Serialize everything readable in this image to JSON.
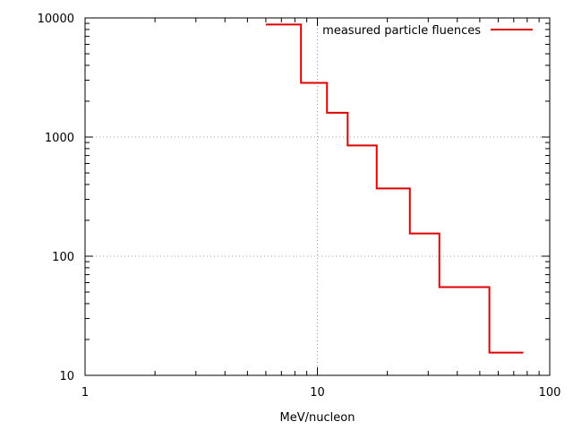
{
  "chart_data": {
    "type": "line",
    "step": true,
    "title": "",
    "xlabel": "MeV/nucleon",
    "ylabel": "",
    "xscale": "log",
    "yscale": "log",
    "xlim": [
      1,
      100
    ],
    "ylim": [
      10,
      10000
    ],
    "grid": true,
    "legend_position": "top-right",
    "x_tick_labels": [
      "1",
      "10",
      "100"
    ],
    "y_tick_labels": [
      "10",
      "100",
      "1000",
      "10000"
    ],
    "series": [
      {
        "name": "measured particle fluences",
        "color": "#e00000",
        "points": [
          {
            "x": 6.0,
            "y": 8800
          },
          {
            "x": 8.5,
            "y": 2850
          },
          {
            "x": 11.0,
            "y": 1600
          },
          {
            "x": 13.5,
            "y": 850
          },
          {
            "x": 18.0,
            "y": 370
          },
          {
            "x": 25.0,
            "y": 155
          },
          {
            "x": 33.5,
            "y": 55
          },
          {
            "x": 55.0,
            "y": 15.5
          },
          {
            "x": 77.0,
            "y": 15.5
          }
        ]
      }
    ]
  }
}
